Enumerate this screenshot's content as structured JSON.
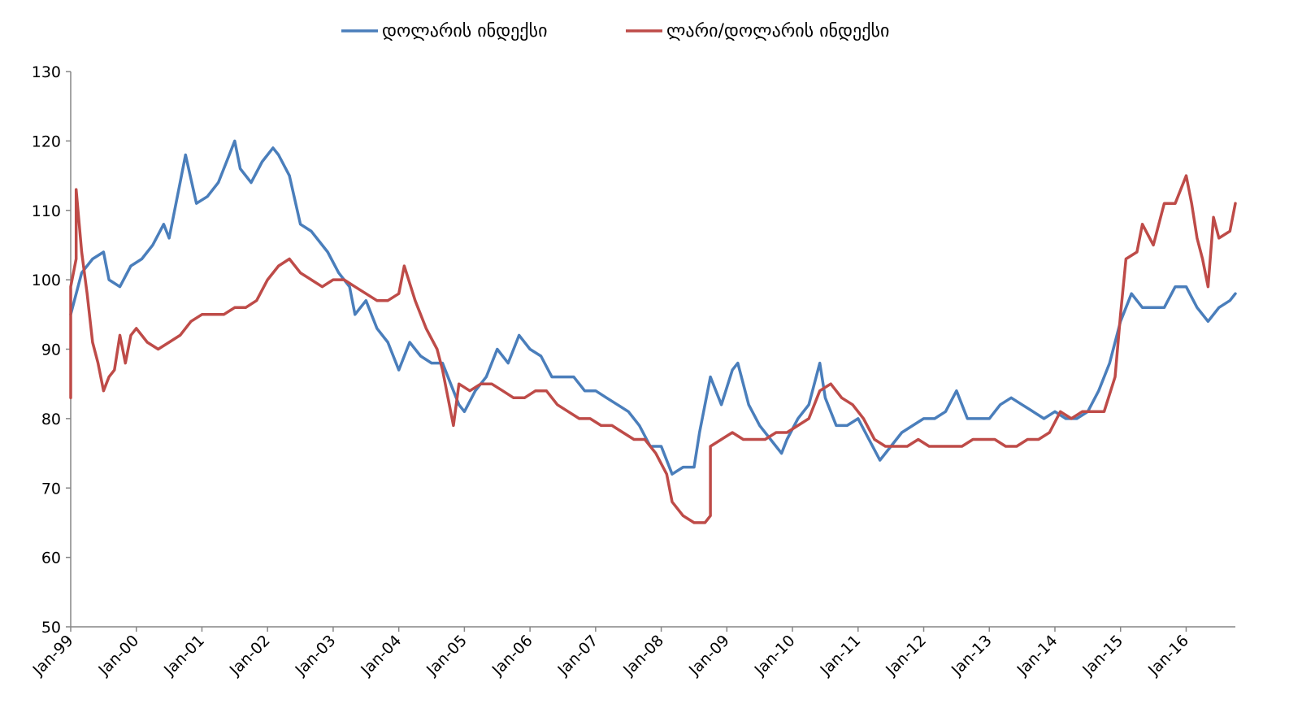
{
  "chart_data": {
    "type": "line",
    "title": "",
    "xlabel": "",
    "ylabel": "",
    "ylim": [
      50,
      130
    ],
    "yticks": [
      50,
      60,
      70,
      80,
      90,
      100,
      110,
      120,
      130
    ],
    "x_range": [
      "1999-01",
      "2016-10"
    ],
    "x_ticks": [
      "Jan-99",
      "Jan-00",
      "Jan-01",
      "Jan-02",
      "Jan-03",
      "Jan-04",
      "Jan-05",
      "Jan-06",
      "Jan-07",
      "Jan-08",
      "Jan-09",
      "Jan-10",
      "Jan-11",
      "Jan-12",
      "Jan-13",
      "Jan-14",
      "Jan-15",
      "Jan-16"
    ],
    "grid": false,
    "legend_position": "top",
    "series": [
      {
        "name": "დოლარის ინდექსი",
        "color": "#4a7ebb",
        "points": [
          [
            "1999-01",
            95
          ],
          [
            "1999-03",
            101
          ],
          [
            "1999-05",
            103
          ],
          [
            "1999-07",
            104
          ],
          [
            "1999-08",
            100
          ],
          [
            "1999-10",
            99
          ],
          [
            "1999-12",
            102
          ],
          [
            "2000-02",
            103
          ],
          [
            "2000-04",
            105
          ],
          [
            "2000-06",
            108
          ],
          [
            "2000-07",
            106
          ],
          [
            "2000-09",
            114
          ],
          [
            "2000-10",
            118
          ],
          [
            "2000-12",
            111
          ],
          [
            "2001-02",
            112
          ],
          [
            "2001-04",
            114
          ],
          [
            "2001-06",
            118
          ],
          [
            "2001-07",
            120
          ],
          [
            "2001-08",
            116
          ],
          [
            "2001-10",
            114
          ],
          [
            "2001-12",
            117
          ],
          [
            "2002-02",
            119
          ],
          [
            "2002-03",
            118
          ],
          [
            "2002-05",
            115
          ],
          [
            "2002-07",
            108
          ],
          [
            "2002-09",
            107
          ],
          [
            "2002-12",
            104
          ],
          [
            "2003-02",
            101
          ],
          [
            "2003-04",
            99
          ],
          [
            "2003-05",
            95
          ],
          [
            "2003-07",
            97
          ],
          [
            "2003-09",
            93
          ],
          [
            "2003-11",
            91
          ],
          [
            "2004-01",
            87
          ],
          [
            "2004-03",
            91
          ],
          [
            "2004-05",
            89
          ],
          [
            "2004-07",
            88
          ],
          [
            "2004-09",
            88
          ],
          [
            "2004-11",
            84
          ],
          [
            "2004-12",
            82
          ],
          [
            "2005-01",
            81
          ],
          [
            "2005-03",
            84
          ],
          [
            "2005-05",
            86
          ],
          [
            "2005-07",
            90
          ],
          [
            "2005-09",
            88
          ],
          [
            "2005-11",
            92
          ],
          [
            "2006-01",
            90
          ],
          [
            "2006-03",
            89
          ],
          [
            "2006-05",
            86
          ],
          [
            "2006-07",
            86
          ],
          [
            "2006-09",
            86
          ],
          [
            "2006-11",
            84
          ],
          [
            "2007-01",
            84
          ],
          [
            "2007-03",
            83
          ],
          [
            "2007-05",
            82
          ],
          [
            "2007-07",
            81
          ],
          [
            "2007-09",
            79
          ],
          [
            "2007-11",
            76
          ],
          [
            "2008-01",
            76
          ],
          [
            "2008-03",
            72
          ],
          [
            "2008-05",
            73
          ],
          [
            "2008-07",
            73
          ],
          [
            "2008-08",
            78
          ],
          [
            "2008-10",
            86
          ],
          [
            "2008-12",
            82
          ],
          [
            "2009-02",
            87
          ],
          [
            "2009-03",
            88
          ],
          [
            "2009-05",
            82
          ],
          [
            "2009-07",
            79
          ],
          [
            "2009-09",
            77
          ],
          [
            "2009-11",
            75
          ],
          [
            "2009-12",
            77
          ],
          [
            "2010-02",
            80
          ],
          [
            "2010-04",
            82
          ],
          [
            "2010-06",
            88
          ],
          [
            "2010-07",
            83
          ],
          [
            "2010-09",
            79
          ],
          [
            "2010-11",
            79
          ],
          [
            "2011-01",
            80
          ],
          [
            "2011-03",
            77
          ],
          [
            "2011-05",
            74
          ],
          [
            "2011-07",
            76
          ],
          [
            "2011-09",
            78
          ],
          [
            "2011-11",
            79
          ],
          [
            "2012-01",
            80
          ],
          [
            "2012-03",
            80
          ],
          [
            "2012-05",
            81
          ],
          [
            "2012-07",
            84
          ],
          [
            "2012-09",
            80
          ],
          [
            "2012-11",
            80
          ],
          [
            "2013-01",
            80
          ],
          [
            "2013-03",
            82
          ],
          [
            "2013-05",
            83
          ],
          [
            "2013-07",
            82
          ],
          [
            "2013-09",
            81
          ],
          [
            "2013-11",
            80
          ],
          [
            "2014-01",
            81
          ],
          [
            "2014-03",
            80
          ],
          [
            "2014-05",
            80
          ],
          [
            "2014-07",
            81
          ],
          [
            "2014-09",
            84
          ],
          [
            "2014-11",
            88
          ],
          [
            "2015-01",
            94
          ],
          [
            "2015-03",
            98
          ],
          [
            "2015-05",
            96
          ],
          [
            "2015-07",
            96
          ],
          [
            "2015-09",
            96
          ],
          [
            "2015-11",
            99
          ],
          [
            "2016-01",
            99
          ],
          [
            "2016-03",
            96
          ],
          [
            "2016-05",
            94
          ],
          [
            "2016-07",
            96
          ],
          [
            "2016-09",
            97
          ],
          [
            "2016-10",
            98
          ]
        ]
      },
      {
        "name": "ლარი/დოლარის ინდექსი",
        "color": "#be4b48",
        "points": [
          [
            "1999-01",
            83
          ],
          [
            "1999-01",
            99
          ],
          [
            "1999-02",
            103
          ],
          [
            "1999-02",
            113
          ],
          [
            "1999-03",
            104
          ],
          [
            "1999-04",
            98
          ],
          [
            "1999-05",
            91
          ],
          [
            "1999-06",
            88
          ],
          [
            "1999-07",
            84
          ],
          [
            "1999-08",
            86
          ],
          [
            "1999-09",
            87
          ],
          [
            "1999-10",
            92
          ],
          [
            "1999-11",
            88
          ],
          [
            "1999-12",
            92
          ],
          [
            "2000-01",
            93
          ],
          [
            "2000-03",
            91
          ],
          [
            "2000-05",
            90
          ],
          [
            "2000-07",
            91
          ],
          [
            "2000-09",
            92
          ],
          [
            "2000-11",
            94
          ],
          [
            "2001-01",
            95
          ],
          [
            "2001-03",
            95
          ],
          [
            "2001-05",
            95
          ],
          [
            "2001-07",
            96
          ],
          [
            "2001-09",
            96
          ],
          [
            "2001-11",
            97
          ],
          [
            "2002-01",
            100
          ],
          [
            "2002-03",
            102
          ],
          [
            "2002-05",
            103
          ],
          [
            "2002-07",
            101
          ],
          [
            "2002-09",
            100
          ],
          [
            "2002-11",
            99
          ],
          [
            "2003-01",
            100
          ],
          [
            "2003-03",
            100
          ],
          [
            "2003-05",
            99
          ],
          [
            "2003-07",
            98
          ],
          [
            "2003-09",
            97
          ],
          [
            "2003-11",
            97
          ],
          [
            "2004-01",
            98
          ],
          [
            "2004-02",
            102
          ],
          [
            "2004-04",
            97
          ],
          [
            "2004-06",
            93
          ],
          [
            "2004-08",
            90
          ],
          [
            "2004-09",
            87
          ],
          [
            "2004-10",
            83
          ],
          [
            "2004-11",
            79
          ],
          [
            "2004-12",
            85
          ],
          [
            "2005-02",
            84
          ],
          [
            "2005-04",
            85
          ],
          [
            "2005-06",
            85
          ],
          [
            "2005-08",
            84
          ],
          [
            "2005-10",
            83
          ],
          [
            "2005-12",
            83
          ],
          [
            "2006-02",
            84
          ],
          [
            "2006-04",
            84
          ],
          [
            "2006-06",
            82
          ],
          [
            "2006-08",
            81
          ],
          [
            "2006-10",
            80
          ],
          [
            "2006-12",
            80
          ],
          [
            "2007-02",
            79
          ],
          [
            "2007-04",
            79
          ],
          [
            "2007-06",
            78
          ],
          [
            "2007-08",
            77
          ],
          [
            "2007-10",
            77
          ],
          [
            "2007-12",
            75
          ],
          [
            "2008-02",
            72
          ],
          [
            "2008-03",
            68
          ],
          [
            "2008-05",
            66
          ],
          [
            "2008-07",
            65
          ],
          [
            "2008-09",
            65
          ],
          [
            "2008-10",
            66
          ],
          [
            "2008-10",
            76
          ],
          [
            "2008-12",
            77
          ],
          [
            "2009-02",
            78
          ],
          [
            "2009-04",
            77
          ],
          [
            "2009-06",
            77
          ],
          [
            "2009-08",
            77
          ],
          [
            "2009-10",
            78
          ],
          [
            "2009-12",
            78
          ],
          [
            "2010-02",
            79
          ],
          [
            "2010-04",
            80
          ],
          [
            "2010-06",
            84
          ],
          [
            "2010-08",
            85
          ],
          [
            "2010-10",
            83
          ],
          [
            "2010-12",
            82
          ],
          [
            "2011-02",
            80
          ],
          [
            "2011-04",
            77
          ],
          [
            "2011-06",
            76
          ],
          [
            "2011-08",
            76
          ],
          [
            "2011-10",
            76
          ],
          [
            "2011-12",
            77
          ],
          [
            "2012-02",
            76
          ],
          [
            "2012-04",
            76
          ],
          [
            "2012-06",
            76
          ],
          [
            "2012-08",
            76
          ],
          [
            "2012-10",
            77
          ],
          [
            "2012-12",
            77
          ],
          [
            "2013-02",
            77
          ],
          [
            "2013-04",
            76
          ],
          [
            "2013-06",
            76
          ],
          [
            "2013-08",
            77
          ],
          [
            "2013-10",
            77
          ],
          [
            "2013-12",
            78
          ],
          [
            "2014-02",
            81
          ],
          [
            "2014-04",
            80
          ],
          [
            "2014-06",
            81
          ],
          [
            "2014-08",
            81
          ],
          [
            "2014-10",
            81
          ],
          [
            "2014-12",
            86
          ],
          [
            "2015-01",
            95
          ],
          [
            "2015-02",
            103
          ],
          [
            "2015-04",
            104
          ],
          [
            "2015-05",
            108
          ],
          [
            "2015-07",
            105
          ],
          [
            "2015-09",
            111
          ],
          [
            "2015-11",
            111
          ],
          [
            "2016-01",
            115
          ],
          [
            "2016-02",
            111
          ],
          [
            "2016-03",
            106
          ],
          [
            "2016-04",
            103
          ],
          [
            "2016-05",
            99
          ],
          [
            "2016-06",
            109
          ],
          [
            "2016-07",
            106
          ],
          [
            "2016-09",
            107
          ],
          [
            "2016-10",
            111
          ]
        ]
      }
    ]
  }
}
